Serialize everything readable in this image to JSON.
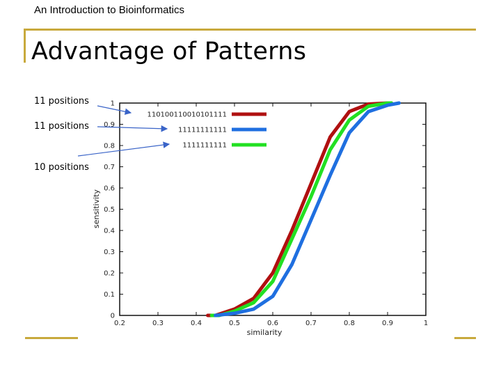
{
  "header": {
    "caption": "An Introduction to Bioinformatics",
    "title": "Advantage of Patterns"
  },
  "annotations": [
    "11 positions",
    "11 positions",
    "10 positions"
  ],
  "chart_data": {
    "type": "line",
    "xlabel": "similarity",
    "ylabel": "sensitivity",
    "xlim": [
      0.2,
      1.0
    ],
    "ylim": [
      0,
      1
    ],
    "xticks": [
      0.2,
      0.3,
      0.4,
      0.5,
      0.6,
      0.7,
      0.8,
      0.9,
      1
    ],
    "yticks": [
      0,
      0.1,
      0.2,
      0.3,
      0.4,
      0.5,
      0.6,
      0.7,
      0.8,
      0.9,
      1
    ],
    "grid": false,
    "legend_position": "top-left",
    "series": [
      {
        "name": "110100110010101111",
        "color": "#b01010",
        "x": [
          0.43,
          0.45,
          0.5,
          0.55,
          0.6,
          0.65,
          0.7,
          0.75,
          0.8,
          0.85,
          0.9,
          0.91
        ],
        "y": [
          0.0,
          0.0,
          0.03,
          0.08,
          0.2,
          0.4,
          0.62,
          0.84,
          0.96,
          0.995,
          1.0,
          1.0
        ]
      },
      {
        "name": "11111111111",
        "color": "#1f6fe0",
        "x": [
          0.45,
          0.5,
          0.55,
          0.6,
          0.65,
          0.7,
          0.75,
          0.8,
          0.85,
          0.9,
          0.93
        ],
        "y": [
          0.0,
          0.01,
          0.03,
          0.09,
          0.24,
          0.45,
          0.66,
          0.86,
          0.96,
          0.99,
          1.0
        ]
      },
      {
        "name": "1111111111",
        "color": "#22e022",
        "x": [
          0.44,
          0.46,
          0.5,
          0.55,
          0.6,
          0.65,
          0.7,
          0.75,
          0.8,
          0.85,
          0.9,
          0.91
        ],
        "y": [
          0.0,
          0.0,
          0.02,
          0.06,
          0.16,
          0.36,
          0.56,
          0.78,
          0.92,
          0.985,
          1.0,
          1.0
        ]
      }
    ]
  }
}
